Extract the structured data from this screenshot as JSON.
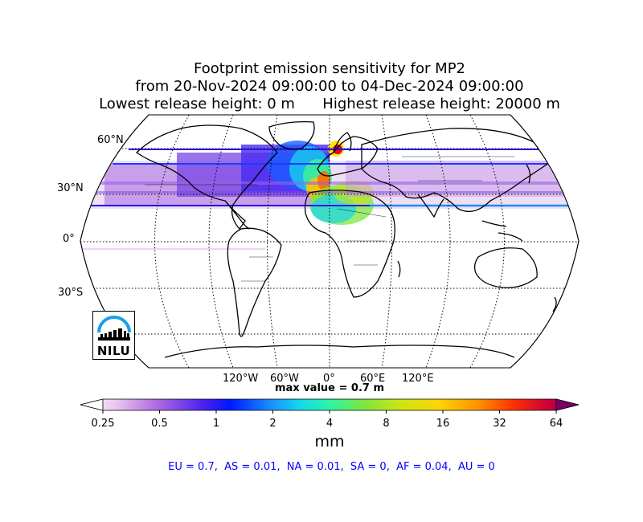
{
  "title": {
    "line1": "Footprint emission sensitivity for MP2",
    "line2": "from 20-Nov-2024 09:00:00 to 04-Dec-2024 09:00:00",
    "line3": "Lowest release height: 0 m      Highest release height: 20000 m"
  },
  "map": {
    "projection": "robinson",
    "lat_labels": [
      "60°N",
      "30°N",
      "0°",
      "30°S"
    ],
    "lon_labels": [
      "120°W",
      "60°W",
      "0°",
      "60°E",
      "120°E"
    ],
    "logo_text": "NILU",
    "max_value_label": "max value = 0.7 m"
  },
  "colorbar": {
    "ticks": [
      "0.25",
      "0.5",
      "1",
      "2",
      "4",
      "8",
      "16",
      "32",
      "64"
    ],
    "unit": "mm",
    "colors": [
      "#ffffff",
      "#d6a8e6",
      "#9a3fe0",
      "#3a1cf0",
      "#0018ff",
      "#1a8cff",
      "#14d6f0",
      "#2cf5a6",
      "#7de63c",
      "#c9e614",
      "#ffe000",
      "#ffb400",
      "#ff7a00",
      "#ff3000",
      "#e6002a",
      "#b80050",
      "#8a0060"
    ]
  },
  "stats": {
    "text": "EU = 0.7,  AS = 0.01,  NA = 0.01,  SA = 0,  AF = 0.04,  AU = 0"
  }
}
